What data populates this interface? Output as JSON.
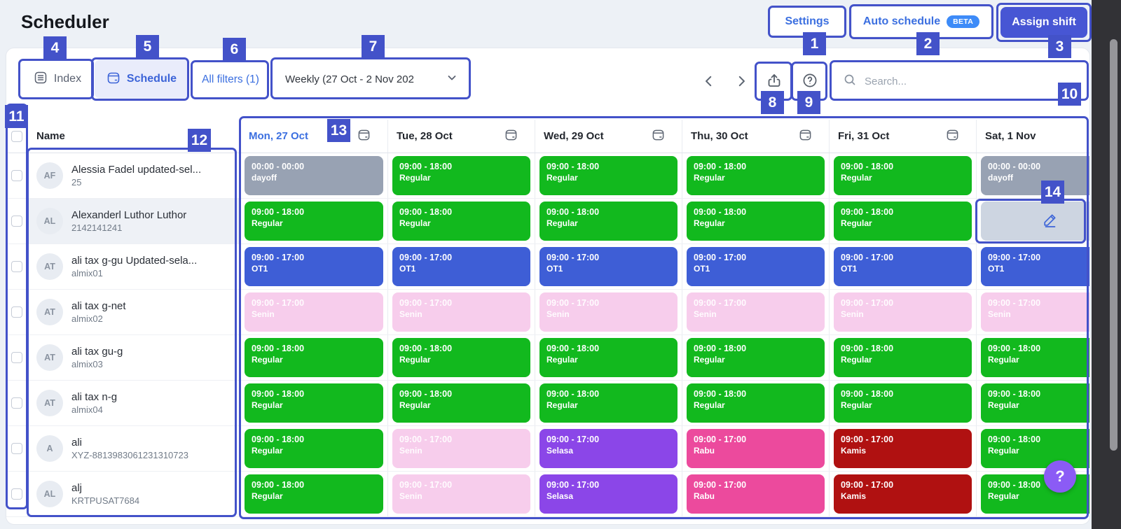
{
  "app": {
    "title": "Scheduler"
  },
  "header": {
    "settings": "Settings",
    "auto_schedule": "Auto schedule",
    "beta": "BETA",
    "assign_shift": "Assign shift"
  },
  "toolbar": {
    "index": "Index",
    "schedule": "Schedule",
    "filters": "All filters (1)",
    "week": "Weekly (27 Oct - 2 Nov 202",
    "search_placeholder": "Search..."
  },
  "table": {
    "name_header": "Name",
    "days": [
      {
        "label": "Mon, 27 Oct",
        "active": true
      },
      {
        "label": "Tue, 28 Oct",
        "active": false
      },
      {
        "label": "Wed, 29 Oct",
        "active": false
      },
      {
        "label": "Thu, 30 Oct",
        "active": false
      },
      {
        "label": "Fri, 31 Oct",
        "active": false
      },
      {
        "label": "Sat, 1 Nov",
        "active": false
      }
    ],
    "employees": [
      {
        "initials": "AF",
        "name": "Alessia Fadel updated-sel...",
        "id": "25",
        "highlighted": false
      },
      {
        "initials": "AL",
        "name": "Alexanderl Luthor Luthor",
        "id": "2142141241",
        "highlighted": true
      },
      {
        "initials": "AT",
        "name": "ali tax g-gu Updated-sela...",
        "id": "almix01",
        "highlighted": false
      },
      {
        "initials": "AT",
        "name": "ali tax g-net",
        "id": "almix02",
        "highlighted": false
      },
      {
        "initials": "AT",
        "name": "ali tax gu-g",
        "id": "almix03",
        "highlighted": false
      },
      {
        "initials": "AT",
        "name": "ali tax n-g",
        "id": "almix04",
        "highlighted": false
      },
      {
        "initials": "A",
        "name": "ali",
        "id": "XYZ-8813983061231310723",
        "highlighted": false
      },
      {
        "initials": "AL",
        "name": "alj",
        "id": "KRTPUSAT7684",
        "highlighted": false
      }
    ],
    "schedule": [
      [
        {
          "time": "00:00 - 00:00",
          "label": "dayoff",
          "color": "gray"
        },
        {
          "time": "09:00 - 18:00",
          "label": "Regular",
          "color": "green"
        },
        {
          "time": "09:00 - 18:00",
          "label": "Regular",
          "color": "green"
        },
        {
          "time": "09:00 - 18:00",
          "label": "Regular",
          "color": "green"
        },
        {
          "time": "09:00 - 18:00",
          "label": "Regular",
          "color": "green"
        },
        {
          "time": "00:00 - 00:00",
          "label": "dayoff",
          "color": "gray"
        }
      ],
      [
        {
          "time": "09:00 - 18:00",
          "label": "Regular",
          "color": "green"
        },
        {
          "time": "09:00 - 18:00",
          "label": "Regular",
          "color": "green"
        },
        {
          "time": "09:00 - 18:00",
          "label": "Regular",
          "color": "green"
        },
        {
          "time": "09:00 - 18:00",
          "label": "Regular",
          "color": "green"
        },
        {
          "time": "09:00 - 18:00",
          "label": "Regular",
          "color": "green"
        },
        {
          "type": "edit"
        }
      ],
      [
        {
          "time": "09:00 - 17:00",
          "label": "OT1",
          "color": "blue"
        },
        {
          "time": "09:00 - 17:00",
          "label": "OT1",
          "color": "blue"
        },
        {
          "time": "09:00 - 17:00",
          "label": "OT1",
          "color": "blue"
        },
        {
          "time": "09:00 - 17:00",
          "label": "OT1",
          "color": "blue"
        },
        {
          "time": "09:00 - 17:00",
          "label": "OT1",
          "color": "blue"
        },
        {
          "time": "09:00 - 17:00",
          "label": "OT1",
          "color": "blue"
        }
      ],
      [
        {
          "time": "09:00 - 17:00",
          "label": "Senin",
          "color": "pink"
        },
        {
          "time": "09:00 - 17:00",
          "label": "Senin",
          "color": "pink"
        },
        {
          "time": "09:00 - 17:00",
          "label": "Senin",
          "color": "pink"
        },
        {
          "time": "09:00 - 17:00",
          "label": "Senin",
          "color": "pink"
        },
        {
          "time": "09:00 - 17:00",
          "label": "Senin",
          "color": "pink"
        },
        {
          "time": "09:00 - 17:00",
          "label": "Senin",
          "color": "pink"
        }
      ],
      [
        {
          "time": "09:00 - 18:00",
          "label": "Regular",
          "color": "green"
        },
        {
          "time": "09:00 - 18:00",
          "label": "Regular",
          "color": "green"
        },
        {
          "time": "09:00 - 18:00",
          "label": "Regular",
          "color": "green"
        },
        {
          "time": "09:00 - 18:00",
          "label": "Regular",
          "color": "green"
        },
        {
          "time": "09:00 - 18:00",
          "label": "Regular",
          "color": "green"
        },
        {
          "time": "09:00 - 18:00",
          "label": "Regular",
          "color": "green"
        }
      ],
      [
        {
          "time": "09:00 - 18:00",
          "label": "Regular",
          "color": "green"
        },
        {
          "time": "09:00 - 18:00",
          "label": "Regular",
          "color": "green"
        },
        {
          "time": "09:00 - 18:00",
          "label": "Regular",
          "color": "green"
        },
        {
          "time": "09:00 - 18:00",
          "label": "Regular",
          "color": "green"
        },
        {
          "time": "09:00 - 18:00",
          "label": "Regular",
          "color": "green"
        },
        {
          "time": "09:00 - 18:00",
          "label": "Regular",
          "color": "green"
        }
      ],
      [
        {
          "time": "09:00 - 18:00",
          "label": "Regular",
          "color": "green"
        },
        {
          "time": "09:00 - 17:00",
          "label": "Senin",
          "color": "pink"
        },
        {
          "time": "09:00 - 17:00",
          "label": "Selasa",
          "color": "purple"
        },
        {
          "time": "09:00 - 17:00",
          "label": "Rabu",
          "color": "magenta"
        },
        {
          "time": "09:00 - 17:00",
          "label": "Kamis",
          "color": "darkred"
        },
        {
          "time": "09:00 - 18:00",
          "label": "Regular",
          "color": "green"
        }
      ],
      [
        {
          "time": "09:00 - 18:00",
          "label": "Regular",
          "color": "green"
        },
        {
          "time": "09:00 - 17:00",
          "label": "Senin",
          "color": "pink"
        },
        {
          "time": "09:00 - 17:00",
          "label": "Selasa",
          "color": "purple"
        },
        {
          "time": "09:00 - 17:00",
          "label": "Rabu",
          "color": "magenta"
        },
        {
          "time": "09:00 - 17:00",
          "label": "Kamis",
          "color": "darkred"
        },
        {
          "time": "09:00 - 18:00",
          "label": "Regular",
          "color": "green"
        }
      ]
    ]
  },
  "colors": {
    "green": "#12b91e",
    "gray": "#98a2b3",
    "blue": "#3e5ed6",
    "pink": "#f7cdec",
    "purple": "#8b46e8",
    "magenta": "#ec4a9d",
    "darkred": "#b01111",
    "edit_bg": "#cdd5e1",
    "annotation": "#4352c9",
    "link_blue": "#3b6fe0",
    "beta_badge": "#3d8bf8",
    "fab_purple": "#8b5bf5"
  },
  "annotations": {
    "badges": [
      "1",
      "2",
      "3",
      "4",
      "5",
      "6",
      "7",
      "8",
      "9",
      "10",
      "11",
      "12",
      "13",
      "14"
    ]
  },
  "help_button": {
    "label": "?"
  }
}
